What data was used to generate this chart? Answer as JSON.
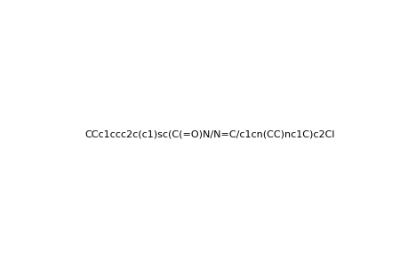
{
  "smiles": "CCc1ccc2c(c1)sc(C(=O)N/N=C/c1cn(CC)nc1C)c2Cl",
  "title": "",
  "background_color": "#ffffff",
  "figsize": [
    4.6,
    3.0
  ],
  "dpi": 100
}
